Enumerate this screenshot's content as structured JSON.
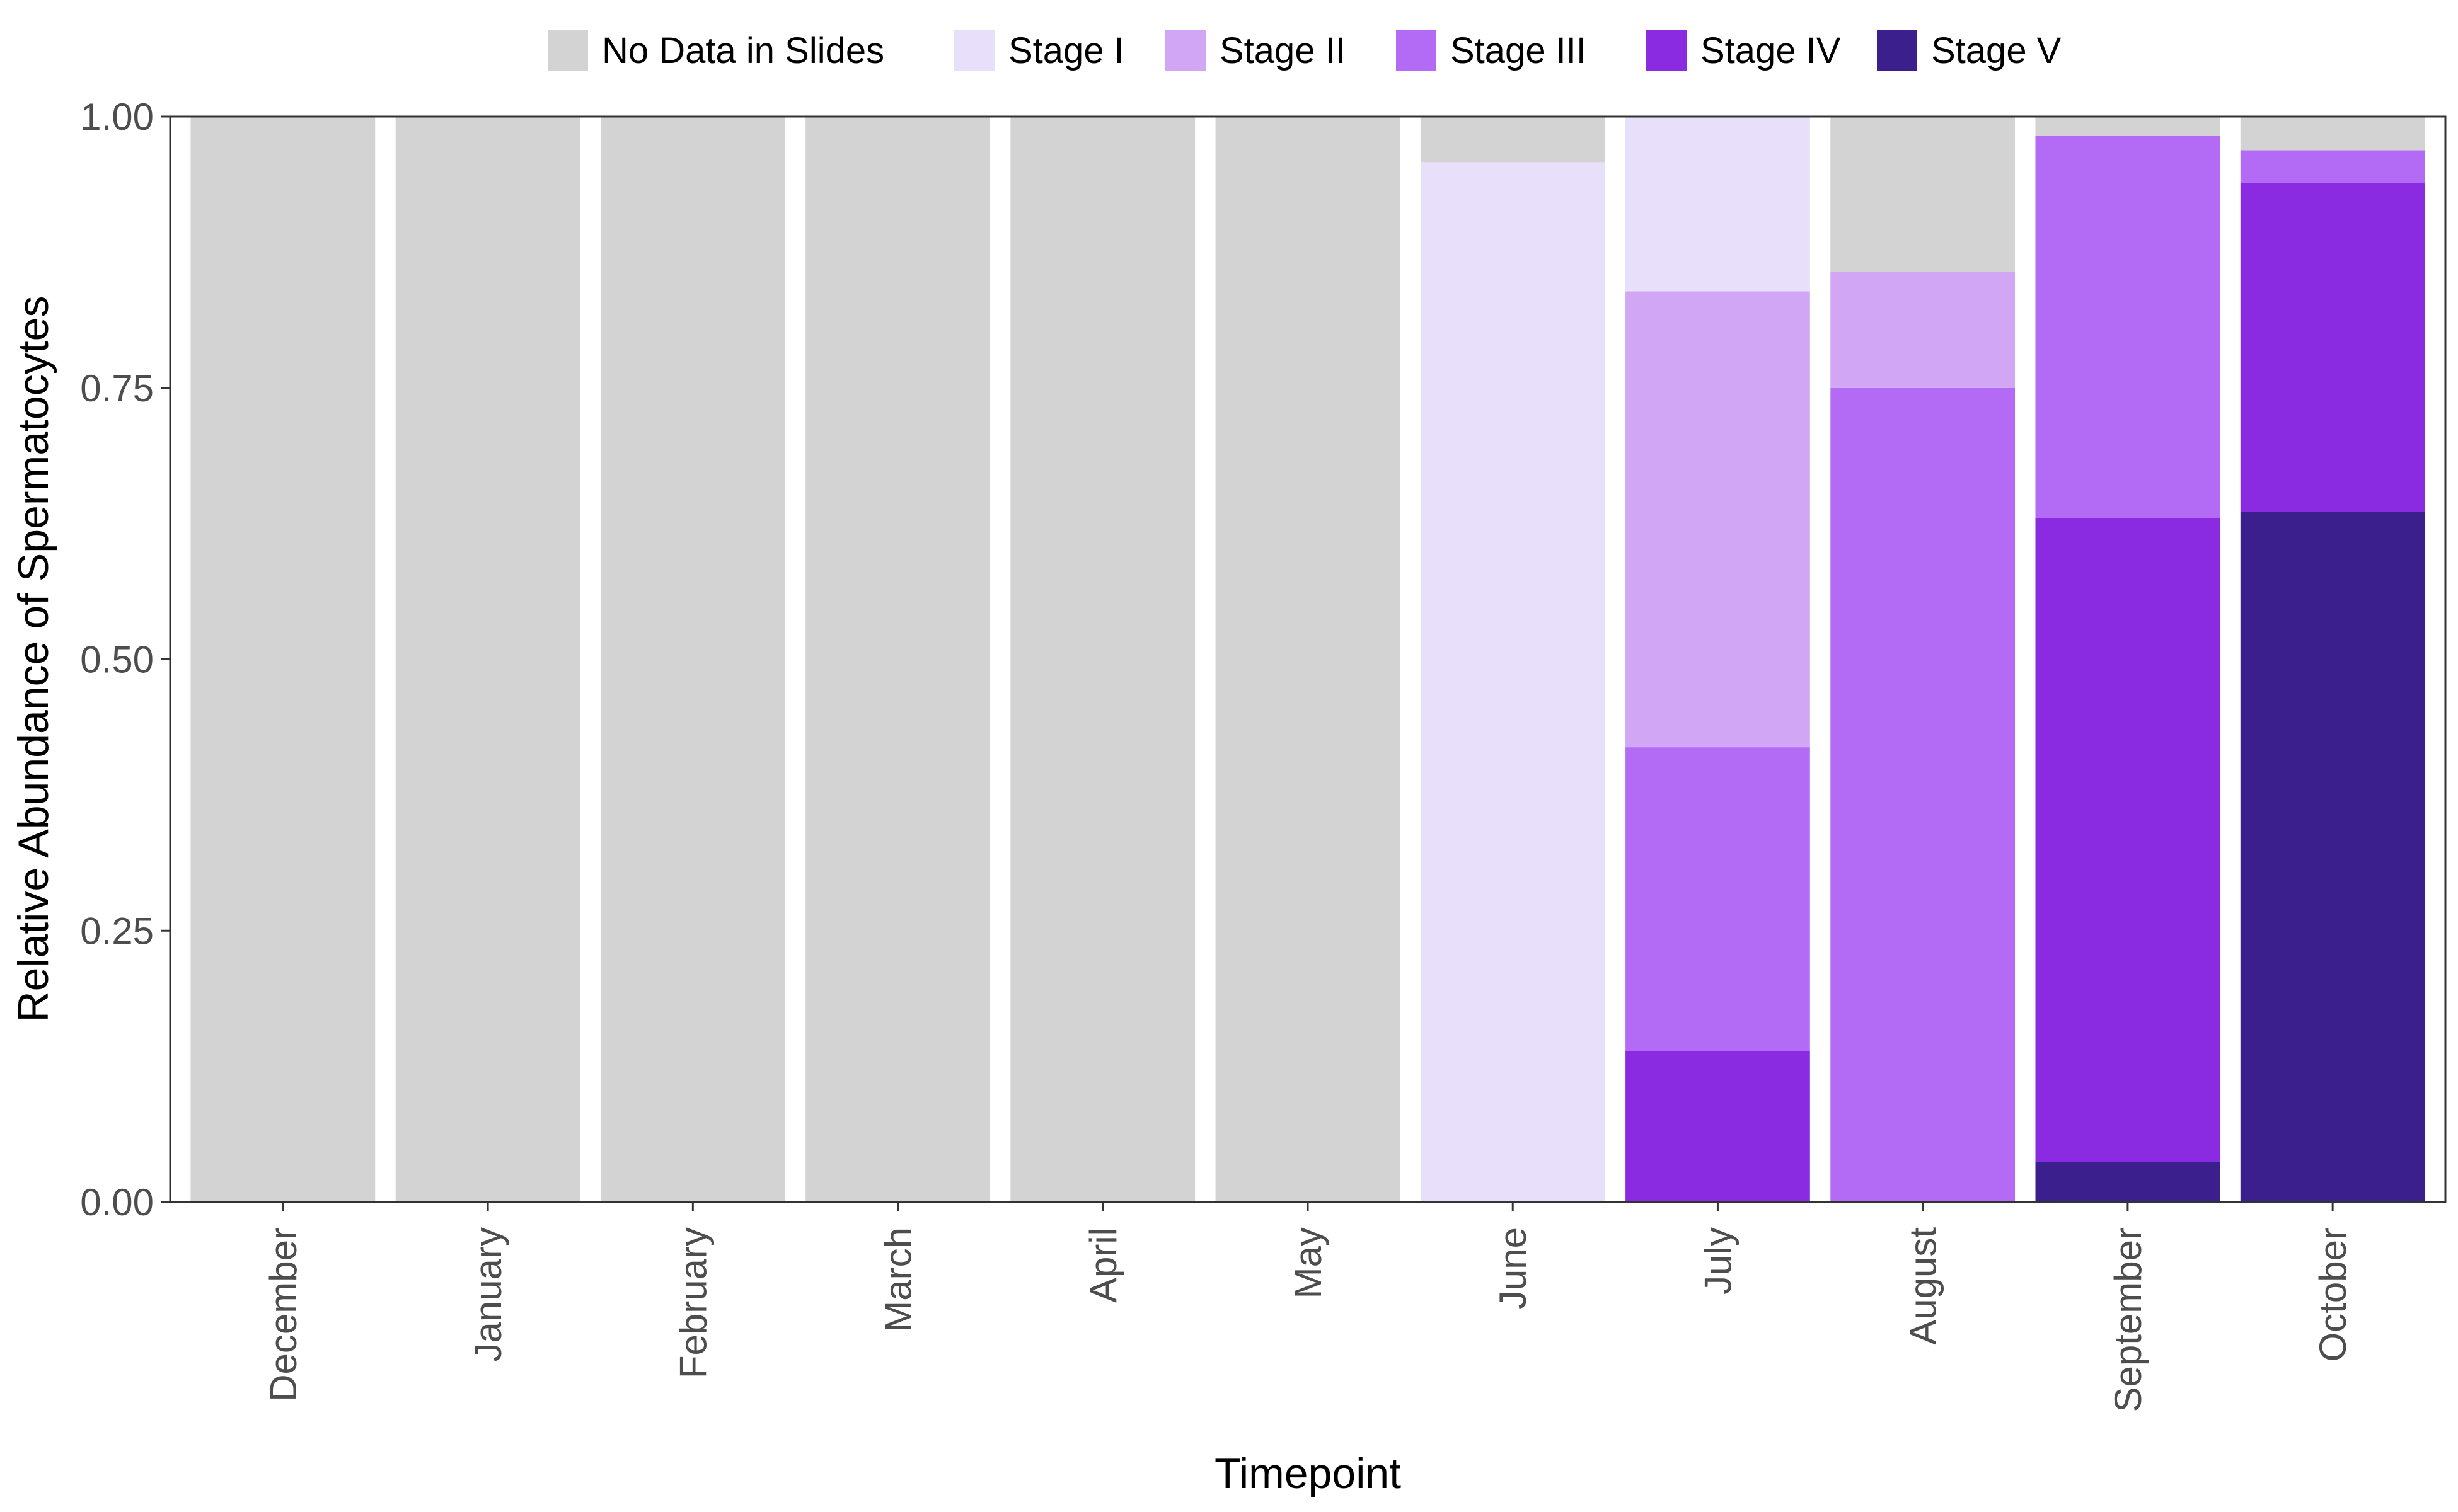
{
  "chart_data": {
    "type": "bar",
    "stacked": true,
    "title": "",
    "xlabel": "Timepoint",
    "ylabel": "Relative Abundance of Spermatocytes",
    "ylim": [
      0,
      1
    ],
    "yticks": [
      "0.00",
      "0.25",
      "0.50",
      "0.75",
      "1.00"
    ],
    "grid": false,
    "legend_position": "top",
    "categories": [
      "December",
      "January",
      "February",
      "March",
      "April",
      "May",
      "June",
      "July",
      "August",
      "September",
      "October"
    ],
    "series": [
      {
        "name": "Stage V",
        "color": "#3b1f8c",
        "values": [
          0,
          0,
          0,
          0,
          0,
          0,
          0,
          0,
          0,
          0.037,
          0.636
        ]
      },
      {
        "name": "Stage IV",
        "color": "#8a2be2",
        "values": [
          0,
          0,
          0,
          0,
          0,
          0,
          0,
          0.139,
          0,
          0.593,
          0.303
        ]
      },
      {
        "name": "Stage III",
        "color": "#b36bf5",
        "values": [
          0,
          0,
          0,
          0,
          0,
          0,
          0,
          0.28,
          0.75,
          0.352,
          0.03
        ]
      },
      {
        "name": "Stage II",
        "color": "#d0a6f5",
        "values": [
          0,
          0,
          0,
          0,
          0,
          0,
          0,
          0.42,
          0.107,
          0,
          0
        ]
      },
      {
        "name": "Stage I",
        "color": "#e8e0fa",
        "values": [
          0,
          0,
          0,
          0,
          0,
          0,
          0.958,
          0.161,
          0,
          0,
          0
        ]
      },
      {
        "name": "No Data in Slides",
        "color": "#d3d3d3",
        "values": [
          1,
          1,
          1,
          1,
          1,
          1,
          0.042,
          0,
          0.143,
          0.018,
          0.031
        ]
      }
    ],
    "legend_order": [
      "No Data in Slides",
      "Stage I",
      "Stage II",
      "Stage III",
      "Stage IV",
      "Stage V"
    ]
  }
}
